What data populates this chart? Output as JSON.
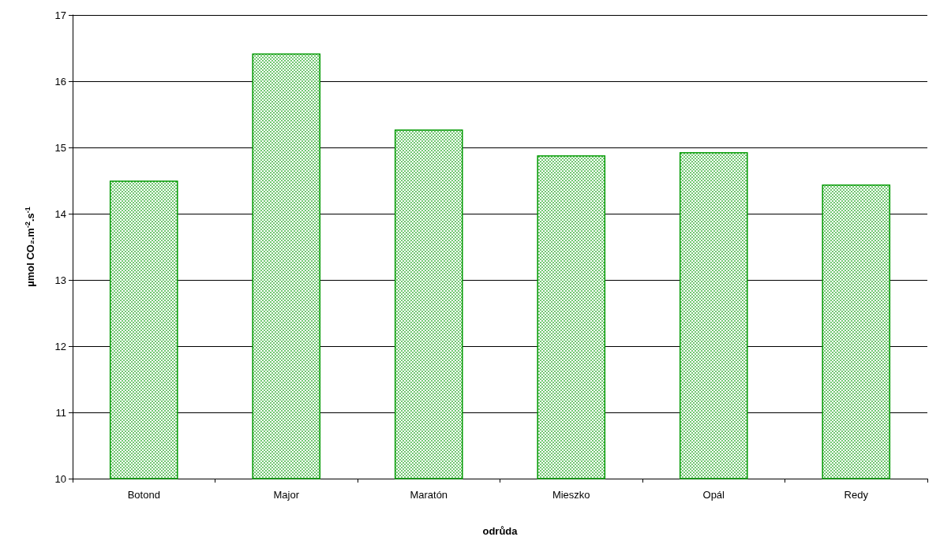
{
  "chart_data": {
    "type": "bar",
    "xlabel": "odrůda",
    "ylabel": "µmol CO₂.m$^{-2}$.s$^{-1}$",
    "categories": [
      "Botond",
      "Major",
      "Maratón",
      "Mieszko",
      "Opál",
      "Redy"
    ],
    "values": [
      14.5,
      16.42,
      15.27,
      14.88,
      14.93,
      14.44
    ],
    "color": "#009900",
    "ylim": [
      10,
      17
    ],
    "yticks": [
      10,
      11,
      12,
      13,
      14,
      15,
      16,
      17
    ],
    "grid": "y"
  }
}
